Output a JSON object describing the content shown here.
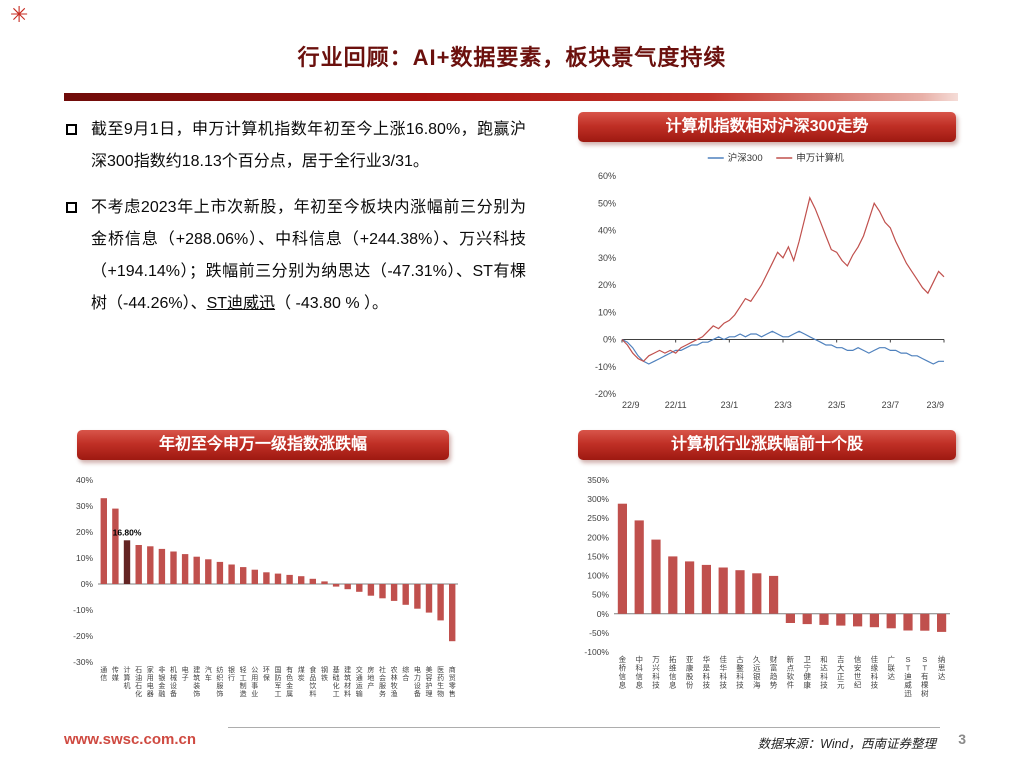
{
  "page": {
    "title": "行业回顾：AI+数据要素，板块景气度持续",
    "logo_glyph": "✳",
    "footer_left": "www.swsc.com.cn",
    "footer_right": "数据来源：Wind，西南证券整理",
    "page_number": "3",
    "accent_color": "#c0281f"
  },
  "bullets": [
    {
      "text": "截至9月1日，申万计算机指数年初至今上涨16.80%，跑赢沪深300指数约18.13个百分点，居于全行业3/31。"
    },
    {
      "text_pre": "不考虑2023年上市次新股，年初至今板块内涨幅前三分别为金桥信息（+288.06%）、中科信息（+244.38%）、万兴科技（+194.14%）；跌幅前三分别为纳思达（-47.31%）、ST有棵树（-44.26%）、",
      "text_underlined": "ST迪威迅",
      "text_post": "（ -43.80 % ）。"
    }
  ],
  "chart_data": [
    {
      "type": "line",
      "title": "计算机指数相对沪深300走势",
      "ylim": [
        -20,
        60
      ],
      "ytick_step": 10,
      "grid": false,
      "legend_position": "top",
      "x_ticks": [
        "22/9",
        "22/11",
        "23/1",
        "23/3",
        "23/5",
        "23/7",
        "23/9"
      ],
      "series": [
        {
          "name": "沪深300",
          "color": "#4f81bd",
          "values": [
            0,
            -1,
            -3,
            -6,
            -8,
            -9,
            -8,
            -7,
            -6,
            -5,
            -4,
            -4,
            -3,
            -2,
            -2,
            -1,
            -1,
            0,
            1,
            0,
            1,
            1,
            2,
            1,
            2,
            2,
            1,
            2,
            3,
            2,
            1,
            1,
            2,
            3,
            2,
            1,
            0,
            -1,
            -2,
            -2,
            -3,
            -3,
            -4,
            -4,
            -3,
            -4,
            -5,
            -4,
            -3,
            -3,
            -4,
            -4,
            -5,
            -5,
            -6,
            -6,
            -7,
            -8,
            -9,
            -8,
            -8
          ]
        },
        {
          "name": "申万计算机",
          "color": "#c0504d",
          "values": [
            0,
            -2,
            -5,
            -7,
            -8,
            -6,
            -5,
            -4,
            -5,
            -4,
            -5,
            -3,
            -2,
            -1,
            0,
            1,
            3,
            5,
            4,
            6,
            7,
            9,
            12,
            15,
            14,
            17,
            20,
            24,
            28,
            32,
            30,
            34,
            29,
            36,
            44,
            52,
            48,
            43,
            38,
            33,
            32,
            29,
            27,
            31,
            34,
            38,
            44,
            50,
            47,
            43,
            41,
            36,
            32,
            28,
            25,
            22,
            19,
            17,
            21,
            25,
            23
          ]
        }
      ]
    },
    {
      "type": "bar",
      "title": "年初至今申万一级指数涨跌幅",
      "ylim": [
        -30,
        40
      ],
      "ytick_step": 10,
      "grid": false,
      "bar_color": "#c0504d",
      "highlight_index": 2,
      "highlight_color": "#632423",
      "highlight_label": "16.80%",
      "categories": [
        "通信",
        "传媒",
        "计算机",
        "石油石化",
        "家用电器",
        "非银金融",
        "机械设备",
        "电子",
        "建筑装饰",
        "汽车",
        "纺织服饰",
        "银行",
        "轻工制造",
        "公用事业",
        "环保",
        "国防军工",
        "有色金属",
        "煤炭",
        "食品饮料",
        "钢铁",
        "基础化工",
        "建筑材料",
        "交通运输",
        "房地产",
        "社会服务",
        "农林牧渔",
        "综合",
        "电力设备",
        "美容护理",
        "医药生物",
        "商贸零售"
      ],
      "values": [
        33,
        29,
        16.8,
        15,
        14.5,
        13.5,
        12.5,
        11.5,
        10.5,
        9.5,
        8.5,
        7.5,
        6.5,
        5.5,
        4.5,
        4,
        3.5,
        3,
        2,
        1,
        -1,
        -2,
        -3,
        -4.5,
        -5.5,
        -6.5,
        -8,
        -9.5,
        -11,
        -14,
        -22
      ]
    },
    {
      "type": "bar",
      "title": "计算机行业涨跌幅前十个股",
      "ylim": [
        -100,
        350
      ],
      "ytick_step": 50,
      "grid": false,
      "bar_color": "#c0504d",
      "categories": [
        "金桥信息",
        "中科信息",
        "万兴科技",
        "拓维信息",
        "亚康股份",
        "华是科技",
        "佳华科技",
        "古鳌科技",
        "久远银海",
        "财富趋势",
        "新点软件",
        "卫宁健康",
        "和达科技",
        "吉大正元",
        "信安世纪",
        "佳缘科技",
        "广联达",
        "ST迪威迅",
        "ST有棵树",
        "纳思达"
      ],
      "values": [
        288.06,
        244.38,
        194.14,
        150,
        137,
        128,
        121,
        114,
        106,
        99,
        -24,
        -27,
        -29,
        -31,
        -33,
        -35,
        -38,
        -43.8,
        -44.26,
        -47.31
      ]
    }
  ]
}
